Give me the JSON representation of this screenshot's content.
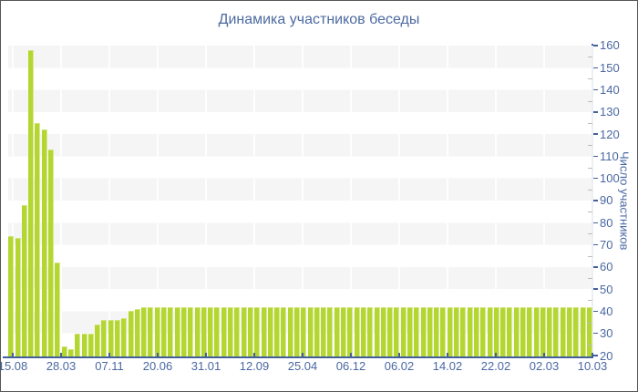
{
  "chart": {
    "title": "Динамика участников беседы",
    "ylabel": "Число участников"
  },
  "chart_data": {
    "type": "bar",
    "title": "Динамика участников беседы",
    "xlabel": "",
    "ylabel": "Число участников",
    "ylim": [
      20,
      160
    ],
    "grid": "horizontal-alternating-bands",
    "legend": "none",
    "y_tick_labels": [
      "20",
      "30",
      "40",
      "50",
      "60",
      "70",
      "80",
      "90",
      "100",
      "110",
      "120",
      "130",
      "140",
      "150",
      "160"
    ],
    "x_tick_labels": [
      "15.08",
      "28.03",
      "07.11",
      "20.06",
      "31.01",
      "12.09",
      "25.04",
      "06.12",
      "06.02",
      "14.02",
      "22.02",
      "02.03",
      "10.03"
    ],
    "values": [
      74,
      73,
      88,
      158,
      125,
      122,
      113,
      62,
      24,
      23,
      30,
      30,
      30,
      34,
      36,
      36,
      36,
      37,
      40,
      41,
      42,
      42,
      42,
      42,
      42,
      42,
      42,
      42,
      42,
      42,
      42,
      42,
      42,
      42,
      42,
      42,
      42,
      42,
      42,
      42,
      42,
      42,
      42,
      42,
      42,
      42,
      42,
      42,
      42,
      42,
      42,
      42,
      42,
      42,
      42,
      42,
      42,
      42,
      42,
      42,
      42,
      42,
      42,
      42,
      42,
      42,
      42,
      42,
      42,
      42,
      42,
      42,
      42,
      42,
      42,
      42,
      42,
      42,
      42,
      42,
      42,
      42,
      42,
      42,
      42,
      42,
      42,
      42
    ],
    "colors": {
      "bar": "#b4d631",
      "bar_highlight": "#d9ea92",
      "band": "#f5f5f6",
      "axis": "#44609c",
      "labels": "#4a68a2",
      "title": "#4d6aa0"
    }
  }
}
